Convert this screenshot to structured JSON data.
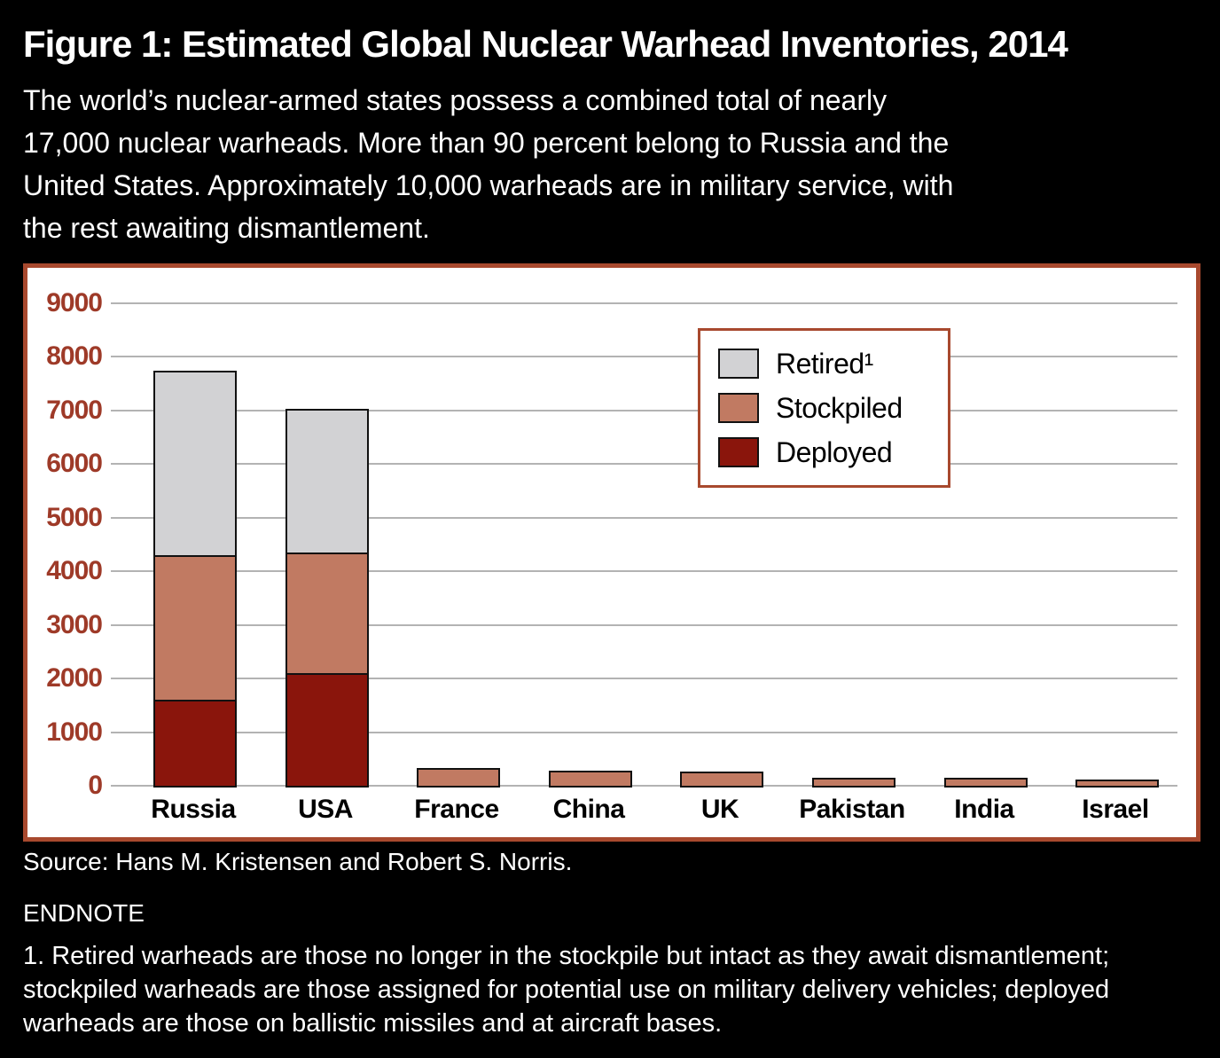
{
  "figure": {
    "title": "Figure 1: Estimated Global Nuclear Warhead Inventories, 2014",
    "subtitle": "The world’s nuclear-armed states possess a combined total of nearly\n17,000 nuclear warheads. More than 90 percent belong to Russia and the\nUnited States. Approximately 10,000 warheads are in military service, with\nthe rest awaiting dismantlement.",
    "source": "Source: Hans M. Kristensen and Robert S. Norris.",
    "endnote_heading": "ENDNOTE",
    "endnote": "1. Retired warheads are those no longer in the stockpile but intact as they await dismantlement;\nstockpiled warheads are those assigned for potential use on military delivery vehicles; deployed\nwarheads are those on ballistic missiles and at aircraft bases."
  },
  "colors": {
    "background": "#000000",
    "panel_border": "#a8492e",
    "gridline": "#b3b3b3",
    "axis_label": "#9e3a28",
    "bar_outline": "#111111",
    "text_light": "#ffffff",
    "text_dark": "#000000"
  },
  "chart_data": {
    "type": "bar",
    "stacked": true,
    "title": "",
    "xlabel": "",
    "ylabel": "",
    "ylim": [
      0,
      9000
    ],
    "ytick_interval": 1000,
    "ytick_labels": [
      "9000",
      "8000",
      "7000",
      "6000",
      "5000",
      "4000",
      "3000",
      "2000",
      "1000",
      "0"
    ],
    "grid": true,
    "legend_position": "upper-center-right",
    "categories": [
      "Russia",
      "USA",
      "France",
      "China",
      "UK",
      "Pakistan",
      "India",
      "Israel"
    ],
    "series": [
      {
        "name": "Deployed",
        "color": "#8a150c",
        "values": [
          1600,
          2100,
          0,
          0,
          0,
          0,
          0,
          0
        ]
      },
      {
        "name": "Stockpiled",
        "color": "#c17a62",
        "values": [
          2700,
          2250,
          300,
          250,
          225,
          120,
          110,
          80
        ]
      },
      {
        "name": "Retired",
        "color": "#d2d2d4",
        "values": [
          3400,
          2650,
          0,
          0,
          0,
          0,
          0,
          0
        ]
      }
    ],
    "cumulative_tops": {
      "Russia": {
        "deployed": 1600,
        "stockpiled": 4300,
        "total": 7700
      },
      "USA": {
        "deployed": 2100,
        "stockpiled": 4350,
        "total": 7000
      }
    },
    "legend": [
      {
        "label": "Retired¹",
        "series": "Retired",
        "color": "#d2d2d4"
      },
      {
        "label": "Stockpiled",
        "series": "Stockpiled",
        "color": "#c17a62"
      },
      {
        "label": "Deployed",
        "series": "Deployed",
        "color": "#8a150c"
      }
    ]
  }
}
